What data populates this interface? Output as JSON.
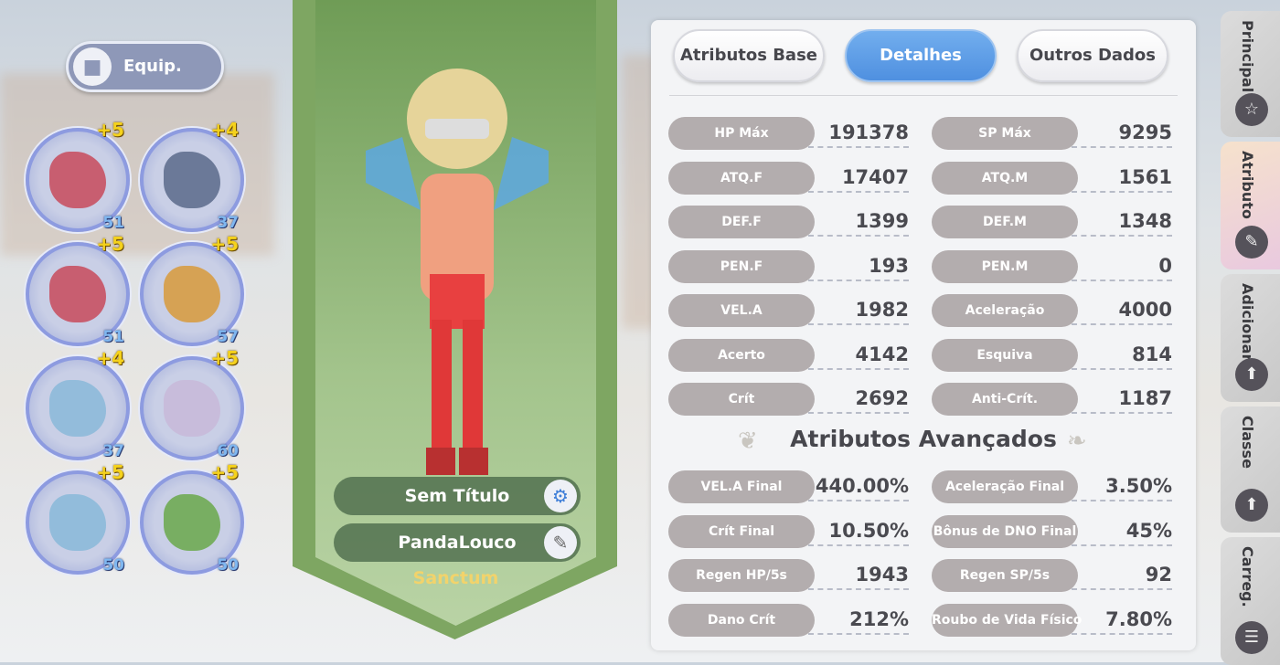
{
  "equip": {
    "label": "Equip.",
    "icon": "shirt-icon"
  },
  "slots": [
    {
      "refine": "+5",
      "level": "51",
      "item": "bow",
      "color": "#c84a5a"
    },
    {
      "refine": "+4",
      "level": "37",
      "item": "boots",
      "color": "#5a6a8a"
    },
    {
      "refine": "+5",
      "level": "51",
      "item": "bow",
      "color": "#c84a5a"
    },
    {
      "refine": "+5",
      "level": "57",
      "item": "laurel-accessory",
      "color": "#d89a3a"
    },
    {
      "refine": "+4",
      "level": "37",
      "item": "robe-armor",
      "color": "#8ab8d8"
    },
    {
      "refine": "+5",
      "level": "60",
      "item": "ring-accessory",
      "color": "#c8b8d8"
    },
    {
      "refine": "+5",
      "level": "50",
      "item": "cape-garment",
      "color": "#88b8d8"
    },
    {
      "refine": "+5",
      "level": "50",
      "item": "book-accessory",
      "color": "#6aa84a"
    }
  ],
  "character": {
    "title": "Sem Título",
    "name": "PandaLouco",
    "guild": "Sanctum"
  },
  "tabs": [
    {
      "label": "Atributos Base",
      "active": false
    },
    {
      "label": "Detalhes",
      "active": true
    },
    {
      "label": "Outros Dados",
      "active": false
    }
  ],
  "stats": [
    [
      "HP Máx",
      "191378",
      "SP Máx",
      "9295"
    ],
    [
      "ATQ.F",
      "17407",
      "ATQ.M",
      "1561"
    ],
    [
      "DEF.F",
      "1399",
      "DEF.M",
      "1348"
    ],
    [
      "PEN.F",
      "193",
      "PEN.M",
      "0"
    ],
    [
      "VEL.A",
      "1982",
      "Aceleração",
      "4000"
    ],
    [
      "Acerto",
      "4142",
      "Esquiva",
      "814"
    ],
    [
      "Crít",
      "2692",
      "Anti-Crít.",
      "1187"
    ]
  ],
  "advanced_title": "Atributos Avançados",
  "advanced": [
    [
      "VEL.A Final",
      "440.00%",
      "Aceleração Final",
      "3.50%"
    ],
    [
      "Crít Final",
      "10.50%",
      "Bônus de DNO Final",
      "45%"
    ],
    [
      "Regen HP/5s",
      "1943",
      "Regen SP/5s",
      "92"
    ],
    [
      "Dano Crít",
      "212%",
      "Roubo de Vida Físico",
      "7.80%"
    ]
  ],
  "side_tabs": [
    {
      "label": "Principal",
      "icon": "star-icon",
      "active": false
    },
    {
      "label": "Atributo",
      "icon": "pencil-icon",
      "active": true
    },
    {
      "label": "Adicionar",
      "icon": "upgrade-plus-icon",
      "active": false
    },
    {
      "label": "Classe",
      "icon": "upgrade-plus-icon",
      "active": false
    },
    {
      "label": "Carreg.",
      "icon": "list-icon",
      "active": false
    }
  ]
}
